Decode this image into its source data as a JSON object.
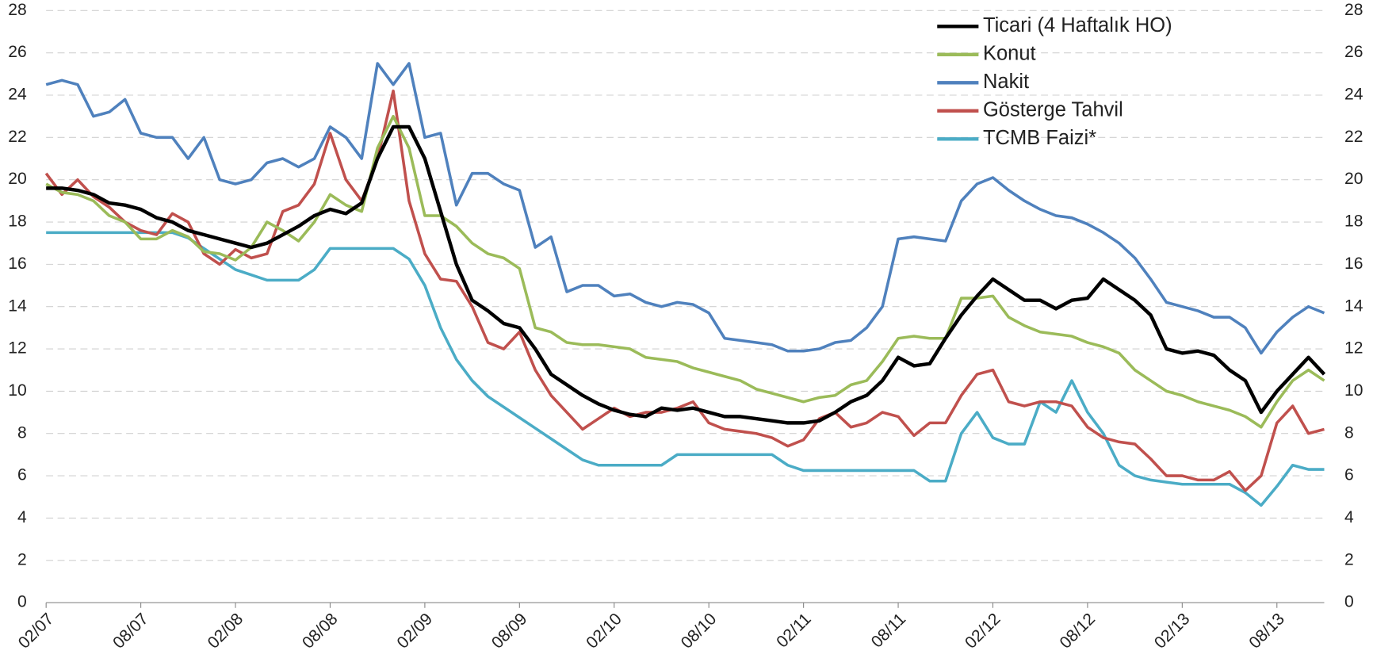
{
  "chart_data": {
    "type": "line",
    "categories": [
      "02/07",
      null,
      null,
      null,
      null,
      null,
      "08/07",
      null,
      null,
      null,
      null,
      null,
      "02/08",
      null,
      null,
      null,
      null,
      null,
      "08/08",
      null,
      null,
      null,
      null,
      null,
      "02/09",
      null,
      null,
      null,
      null,
      null,
      "08/09",
      null,
      null,
      null,
      null,
      null,
      "02/10",
      null,
      null,
      null,
      null,
      null,
      "08/10",
      null,
      null,
      null,
      null,
      null,
      "02/11",
      null,
      null,
      null,
      null,
      null,
      "08/11",
      null,
      null,
      null,
      null,
      null,
      "02/12",
      null,
      null,
      null,
      null,
      null,
      "08/12",
      null,
      null,
      null,
      null,
      null,
      "02/13",
      null,
      null,
      null,
      null,
      null,
      "08/13",
      null,
      null,
      null
    ],
    "ylim": [
      0,
      28
    ],
    "yticks": [
      0,
      2,
      4,
      6,
      8,
      10,
      12,
      14,
      16,
      18,
      20,
      22,
      24,
      26,
      28
    ],
    "y2lim": [
      0,
      28
    ],
    "y2ticks": [
      0,
      2,
      4,
      6,
      8,
      10,
      12,
      14,
      16,
      18,
      20,
      22,
      24,
      26,
      28
    ],
    "grid": true,
    "legend": "top-right",
    "series": [
      {
        "name": "Ticari (4 Haftalık HO)",
        "color": "#000000",
        "values": [
          19.6,
          19.6,
          19.5,
          19.3,
          18.9,
          18.8,
          18.6,
          18.2,
          18.0,
          17.6,
          17.4,
          17.2,
          17.0,
          16.8,
          17.0,
          17.4,
          17.8,
          18.3,
          18.6,
          18.4,
          18.9,
          21.0,
          22.5,
          22.5,
          21.0,
          18.5,
          16.0,
          14.3,
          13.8,
          13.2,
          13.0,
          12.0,
          10.8,
          10.3,
          9.8,
          9.4,
          9.1,
          8.9,
          8.8,
          9.2,
          9.1,
          9.2,
          9.0,
          8.8,
          8.8,
          8.7,
          8.6,
          8.5,
          8.5,
          8.6,
          9.0,
          9.5,
          9.8,
          10.5,
          11.6,
          11.2,
          11.3,
          12.5,
          13.6,
          14.5,
          15.3,
          14.8,
          14.3,
          14.3,
          13.9,
          14.3,
          14.4,
          15.3,
          14.8,
          14.3,
          13.6,
          12.0,
          11.8,
          11.9,
          11.7,
          11.0,
          10.5,
          9.0,
          10.0,
          10.8,
          11.6,
          10.8
        ]
      },
      {
        "name": "Konut",
        "color": "#9bbb59",
        "values": [
          19.8,
          19.4,
          19.3,
          19.0,
          18.3,
          18.0,
          17.2,
          17.2,
          17.6,
          17.3,
          16.6,
          16.5,
          16.2,
          16.8,
          18.0,
          17.6,
          17.1,
          18.0,
          19.3,
          18.8,
          18.5,
          21.5,
          23.0,
          21.5,
          18.3,
          18.3,
          17.8,
          17.0,
          16.5,
          16.3,
          15.8,
          13.0,
          12.8,
          12.3,
          12.2,
          12.2,
          12.1,
          12.0,
          11.6,
          11.5,
          11.4,
          11.1,
          10.9,
          10.7,
          10.5,
          10.1,
          9.9,
          9.7,
          9.5,
          9.7,
          9.8,
          10.3,
          10.5,
          11.4,
          12.5,
          12.6,
          12.5,
          12.5,
          14.4,
          14.4,
          14.5,
          13.5,
          13.1,
          12.8,
          12.7,
          12.6,
          12.3,
          12.1,
          11.8,
          11.0,
          10.5,
          10.0,
          9.8,
          9.5,
          9.3,
          9.1,
          8.8,
          8.3,
          9.5,
          10.5,
          11.0,
          10.5
        ]
      },
      {
        "name": "Nakit",
        "color": "#4f81bd",
        "values": [
          24.5,
          24.7,
          24.5,
          23.0,
          23.2,
          23.8,
          22.2,
          22.0,
          22.0,
          21.0,
          22.0,
          20.0,
          19.8,
          20.0,
          20.8,
          21.0,
          20.6,
          21.0,
          22.5,
          22.0,
          21.0,
          25.5,
          24.5,
          25.5,
          22.0,
          22.2,
          18.8,
          20.3,
          20.3,
          19.8,
          19.5,
          16.8,
          17.3,
          14.7,
          15.0,
          15.0,
          14.5,
          14.6,
          14.2,
          14.0,
          14.2,
          14.1,
          13.7,
          12.5,
          12.4,
          12.3,
          12.2,
          11.9,
          11.9,
          12.0,
          12.3,
          12.4,
          13.0,
          14.0,
          17.2,
          17.3,
          17.2,
          17.1,
          19.0,
          19.8,
          20.1,
          19.5,
          19.0,
          18.6,
          18.3,
          18.2,
          17.9,
          17.5,
          17.0,
          16.3,
          15.3,
          14.2,
          14.0,
          13.8,
          13.5,
          13.5,
          13.0,
          11.8,
          12.8,
          13.5,
          14.0,
          13.7
        ]
      },
      {
        "name": "Gösterge Tahvil",
        "color": "#c0504d",
        "values": [
          20.3,
          19.3,
          20.0,
          19.2,
          18.7,
          18.0,
          17.6,
          17.4,
          18.4,
          18.0,
          16.5,
          16.0,
          16.7,
          16.3,
          16.5,
          18.5,
          18.8,
          19.8,
          22.2,
          20.0,
          19.0,
          21.0,
          24.2,
          19.0,
          16.5,
          15.3,
          15.2,
          14.0,
          12.3,
          12.0,
          12.8,
          11.0,
          9.8,
          9.0,
          8.2,
          8.7,
          9.2,
          8.8,
          9.0,
          9.0,
          9.2,
          9.5,
          8.5,
          8.2,
          8.1,
          8.0,
          7.8,
          7.4,
          7.7,
          8.7,
          9.0,
          8.3,
          8.5,
          9.0,
          8.8,
          7.9,
          8.5,
          8.5,
          9.8,
          10.8,
          11.0,
          9.5,
          9.3,
          9.5,
          9.5,
          9.3,
          8.3,
          7.8,
          7.6,
          7.5,
          6.8,
          6.0,
          6.0,
          5.8,
          5.8,
          6.2,
          5.3,
          6.0,
          8.5,
          9.3,
          8.0,
          8.2
        ]
      },
      {
        "name": "TCMB Faizi*",
        "color": "#4bacc6",
        "values": [
          17.5,
          17.5,
          17.5,
          17.5,
          17.5,
          17.5,
          17.5,
          17.5,
          17.5,
          17.25,
          16.75,
          16.25,
          15.75,
          15.5,
          15.25,
          15.25,
          15.25,
          15.75,
          16.75,
          16.75,
          16.75,
          16.75,
          16.75,
          16.25,
          15.0,
          13.0,
          11.5,
          10.5,
          9.75,
          9.25,
          8.75,
          8.25,
          7.75,
          7.25,
          6.75,
          6.5,
          6.5,
          6.5,
          6.5,
          6.5,
          7.0,
          7.0,
          7.0,
          7.0,
          7.0,
          7.0,
          7.0,
          6.5,
          6.25,
          6.25,
          6.25,
          6.25,
          6.25,
          6.25,
          6.25,
          6.25,
          5.75,
          5.75,
          8.0,
          9.0,
          7.8,
          7.5,
          7.5,
          9.5,
          9.0,
          10.5,
          9.0,
          8.0,
          6.5,
          6.0,
          5.8,
          5.7,
          5.6,
          5.6,
          5.6,
          5.6,
          5.2,
          4.6,
          5.5,
          6.5,
          6.3,
          6.3
        ]
      }
    ]
  }
}
